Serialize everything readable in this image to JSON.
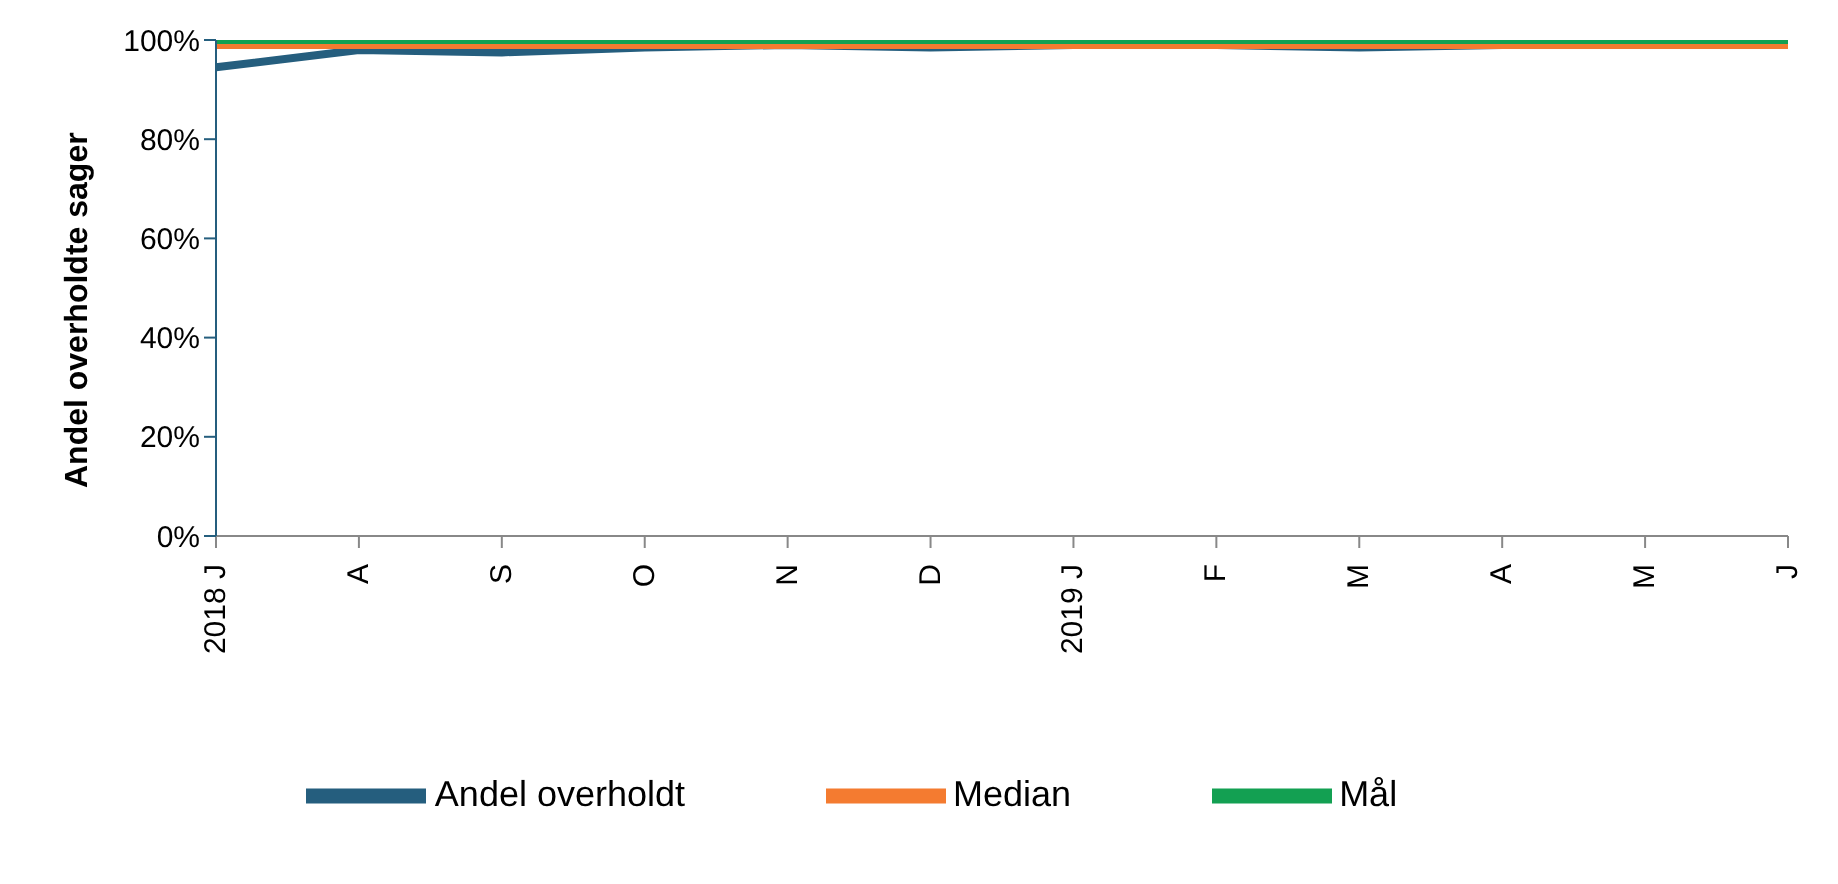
{
  "chart_data": {
    "type": "line",
    "ylabel": "Andel overholdte sager",
    "categories": [
      "2018 J",
      "A",
      "S",
      "O",
      "N",
      "D",
      "2019 J",
      "F",
      "M",
      "A",
      "M",
      "J"
    ],
    "series": [
      {
        "name": "Andel overholdt",
        "color": "#255e7e",
        "values": [
          94.5,
          98,
          97.5,
          98.5,
          99,
          98.5,
          99,
          99,
          98.5,
          99,
          99.5,
          99.5
        ]
      },
      {
        "name": "Median",
        "color": "#f47b30",
        "values": [
          99,
          99,
          99,
          99,
          99,
          99,
          99,
          99,
          99,
          99,
          99,
          99
        ]
      },
      {
        "name": "Mål",
        "color": "#13a052",
        "values": [
          100,
          100,
          100,
          100,
          100,
          100,
          100,
          100,
          100,
          100,
          100,
          100
        ]
      }
    ],
    "ylim": [
      0,
      100
    ],
    "yticks": [
      {
        "value": 0,
        "label": "0%"
      },
      {
        "value": 20,
        "label": "20%"
      },
      {
        "value": 40,
        "label": "40%"
      },
      {
        "value": 60,
        "label": "60%"
      },
      {
        "value": 80,
        "label": "80%"
      },
      {
        "value": 100,
        "label": "100%"
      }
    ],
    "grid": false,
    "legend": "bottom",
    "marker": "none",
    "line_style": "solid"
  }
}
